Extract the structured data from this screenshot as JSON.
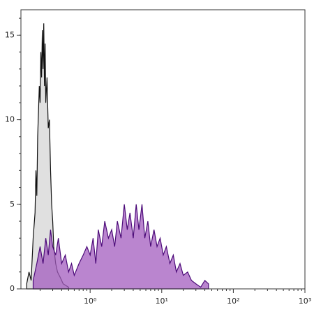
{
  "chart_data": {
    "type": "histogram-overlay",
    "xscale": "log",
    "xlim": [
      0.108,
      1000
    ],
    "ylim": [
      0,
      16.5
    ],
    "xticks": [
      {
        "value": 1,
        "label": "10⁰"
      },
      {
        "value": 10,
        "label": "10¹"
      },
      {
        "value": 100,
        "label": "10²"
      },
      {
        "value": 1000,
        "label": "10³"
      }
    ],
    "yticks": [
      0,
      5,
      10,
      15
    ],
    "series": [
      {
        "color": "#111111",
        "fill": "#e0e0e0",
        "x": [
          0.13,
          0.14,
          0.15,
          0.16,
          0.17,
          0.175,
          0.18,
          0.185,
          0.19,
          0.195,
          0.2,
          0.205,
          0.21,
          0.215,
          0.22,
          0.225,
          0.23,
          0.235,
          0.24,
          0.25,
          0.26,
          0.27,
          0.28,
          0.29,
          0.3,
          0.31,
          0.33,
          0.35,
          0.38,
          0.42,
          0.5
        ],
        "values": [
          0.3,
          1,
          0.5,
          3,
          4.5,
          7,
          5.5,
          9,
          10.5,
          12,
          11,
          14,
          12.5,
          15.3,
          13,
          15.7,
          12,
          14.5,
          11,
          12.5,
          9.5,
          10,
          7,
          5,
          4,
          2.5,
          1.5,
          1,
          0.7,
          0.3,
          0.1
        ]
      },
      {
        "color": "#4b0a78",
        "fill": "#a35cbf",
        "x": [
          0.16,
          0.18,
          0.2,
          0.22,
          0.24,
          0.26,
          0.28,
          0.3,
          0.33,
          0.36,
          0.4,
          0.45,
          0.5,
          0.55,
          0.6,
          0.7,
          0.8,
          0.9,
          1.0,
          1.1,
          1.2,
          1.3,
          1.45,
          1.6,
          1.8,
          2.0,
          2.2,
          2.4,
          2.7,
          3.0,
          3.3,
          3.6,
          4.0,
          4.4,
          4.8,
          5.3,
          5.8,
          6.4,
          7,
          7.8,
          8.6,
          9.5,
          10.5,
          11.6,
          13,
          14.5,
          16,
          18,
          20,
          23,
          26,
          30,
          35,
          40,
          45
        ],
        "values": [
          0.5,
          1.5,
          2.5,
          1.5,
          3,
          2,
          3.5,
          2.5,
          2,
          3,
          1.5,
          2,
          1,
          1.5,
          0.8,
          1.5,
          2,
          2.5,
          2,
          3,
          1.5,
          3.5,
          2.5,
          4,
          3,
          3.5,
          2.5,
          4,
          3,
          5,
          3.5,
          4.5,
          3,
          5,
          3.5,
          5,
          3,
          4,
          2.5,
          3.5,
          2.5,
          3,
          2,
          2.5,
          1.5,
          2,
          1,
          1.5,
          0.8,
          1,
          0.5,
          0.3,
          0.1,
          0.5,
          0.3
        ]
      }
    ]
  }
}
